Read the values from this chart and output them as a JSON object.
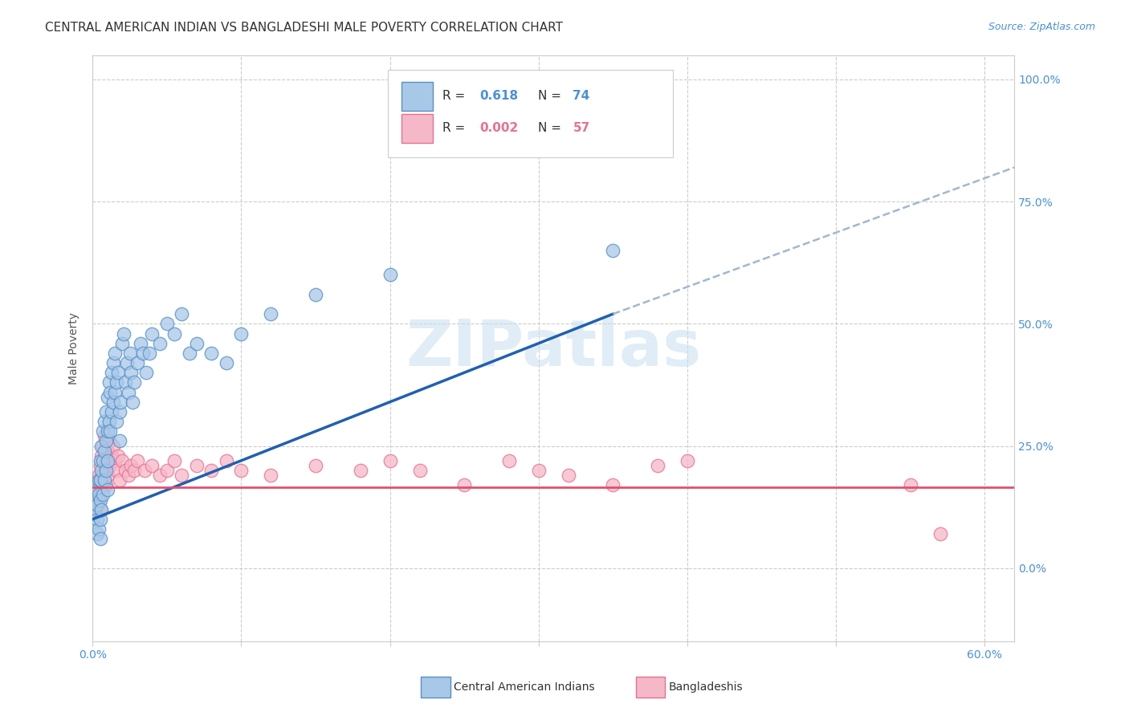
{
  "title": "CENTRAL AMERICAN INDIAN VS BANGLADESHI MALE POVERTY CORRELATION CHART",
  "source": "Source: ZipAtlas.com",
  "ylabel": "Male Poverty",
  "ytick_labels": [
    "0.0%",
    "25.0%",
    "50.0%",
    "75.0%",
    "100.0%"
  ],
  "ytick_values": [
    0.0,
    0.25,
    0.5,
    0.75,
    1.0
  ],
  "xtick_positions": [
    0.0,
    0.1,
    0.2,
    0.3,
    0.4,
    0.5,
    0.6
  ],
  "legend_blue_R": "0.618",
  "legend_blue_N": "74",
  "legend_pink_R": "0.002",
  "legend_pink_N": "57",
  "legend_label_blue": "Central American Indians",
  "legend_label_pink": "Bangladeshis",
  "watermark": "ZIPatlas",
  "blue_color": "#a8c8e8",
  "pink_color": "#f5b8c8",
  "blue_edge_color": "#5590c8",
  "pink_edge_color": "#e87090",
  "blue_line_color": "#2060b0",
  "pink_line_color": "#e05070",
  "trendline_dash_color": "#a0b8d0",
  "xlim": [
    0.0,
    0.62
  ],
  "ylim": [
    -0.15,
    1.05
  ],
  "blue_trendline_x0": 0.0,
  "blue_trendline_y0": 0.1,
  "blue_trendline_x1": 0.35,
  "blue_trendline_y1": 0.52,
  "blue_trendline_dash_x1": 0.62,
  "blue_trendline_dash_y1": 0.82,
  "pink_trendline_y": 0.165,
  "blue_points_x": [
    0.002,
    0.002,
    0.003,
    0.003,
    0.003,
    0.003,
    0.004,
    0.004,
    0.004,
    0.005,
    0.005,
    0.005,
    0.005,
    0.005,
    0.006,
    0.006,
    0.006,
    0.007,
    0.007,
    0.007,
    0.008,
    0.008,
    0.008,
    0.009,
    0.009,
    0.009,
    0.01,
    0.01,
    0.01,
    0.01,
    0.011,
    0.011,
    0.012,
    0.012,
    0.013,
    0.013,
    0.014,
    0.014,
    0.015,
    0.015,
    0.016,
    0.016,
    0.017,
    0.018,
    0.018,
    0.019,
    0.02,
    0.021,
    0.022,
    0.023,
    0.024,
    0.025,
    0.026,
    0.027,
    0.028,
    0.03,
    0.032,
    0.034,
    0.036,
    0.038,
    0.04,
    0.045,
    0.05,
    0.055,
    0.06,
    0.065,
    0.07,
    0.08,
    0.09,
    0.1,
    0.12,
    0.15,
    0.2,
    0.35
  ],
  "blue_points_y": [
    0.14,
    0.11,
    0.16,
    0.13,
    0.1,
    0.07,
    0.18,
    0.15,
    0.08,
    0.22,
    0.18,
    0.14,
    0.1,
    0.06,
    0.25,
    0.2,
    0.12,
    0.28,
    0.22,
    0.15,
    0.3,
    0.24,
    0.18,
    0.32,
    0.26,
    0.2,
    0.35,
    0.28,
    0.22,
    0.16,
    0.38,
    0.3,
    0.36,
    0.28,
    0.4,
    0.32,
    0.42,
    0.34,
    0.44,
    0.36,
    0.38,
    0.3,
    0.4,
    0.32,
    0.26,
    0.34,
    0.46,
    0.48,
    0.38,
    0.42,
    0.36,
    0.44,
    0.4,
    0.34,
    0.38,
    0.42,
    0.46,
    0.44,
    0.4,
    0.44,
    0.48,
    0.46,
    0.5,
    0.48,
    0.52,
    0.44,
    0.46,
    0.44,
    0.42,
    0.48,
    0.52,
    0.56,
    0.6,
    0.65
  ],
  "pink_points_x": [
    0.002,
    0.002,
    0.003,
    0.003,
    0.004,
    0.004,
    0.005,
    0.005,
    0.005,
    0.006,
    0.006,
    0.007,
    0.007,
    0.008,
    0.008,
    0.009,
    0.009,
    0.01,
    0.01,
    0.011,
    0.012,
    0.013,
    0.014,
    0.015,
    0.016,
    0.017,
    0.018,
    0.02,
    0.022,
    0.024,
    0.026,
    0.028,
    0.03,
    0.035,
    0.04,
    0.045,
    0.05,
    0.055,
    0.06,
    0.07,
    0.08,
    0.09,
    0.1,
    0.12,
    0.15,
    0.18,
    0.2,
    0.22,
    0.25,
    0.28,
    0.3,
    0.32,
    0.35,
    0.38,
    0.4,
    0.55,
    0.57
  ],
  "pink_points_y": [
    0.15,
    0.12,
    0.17,
    0.13,
    0.19,
    0.14,
    0.21,
    0.17,
    0.12,
    0.23,
    0.18,
    0.25,
    0.19,
    0.27,
    0.21,
    0.22,
    0.17,
    0.24,
    0.19,
    0.26,
    0.21,
    0.23,
    0.25,
    0.22,
    0.2,
    0.23,
    0.18,
    0.22,
    0.2,
    0.19,
    0.21,
    0.2,
    0.22,
    0.2,
    0.21,
    0.19,
    0.2,
    0.22,
    0.19,
    0.21,
    0.2,
    0.22,
    0.2,
    0.19,
    0.21,
    0.2,
    0.22,
    0.2,
    0.17,
    0.22,
    0.2,
    0.19,
    0.17,
    0.21,
    0.22,
    0.17,
    0.07
  ],
  "title_fontsize": 11,
  "source_fontsize": 9,
  "axis_label_fontsize": 10,
  "tick_fontsize": 10,
  "legend_fontsize": 11
}
